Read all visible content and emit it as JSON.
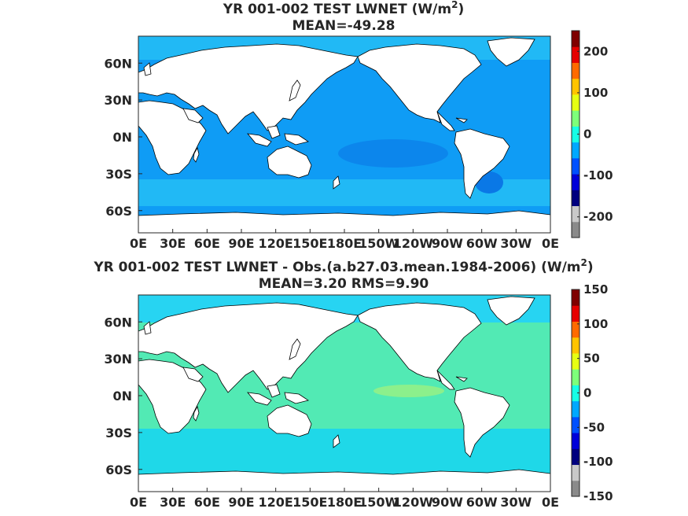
{
  "colors": {
    "ocean_top_base": "#0f9cf5",
    "ocean_top_highlat": "#21b9f5",
    "ocean_top_deep": "#0a78e6",
    "ocean_bottom_base": "#52eab4",
    "ocean_bottom_south": "#1fd8e8",
    "ocean_bottom_north": "#27d4f2",
    "ocean_bottom_warm": "#8cf08c",
    "land": "#ffffff",
    "coast": "#000000",
    "colorbar": [
      "#8a8a8a",
      "#c9c9c9",
      "#00007f",
      "#0000d9",
      "#0050ff",
      "#00a8ff",
      "#16ffe6",
      "#7dff7a",
      "#e6ff12",
      "#ffc400",
      "#ff6a00",
      "#e60000",
      "#7f0000"
    ]
  },
  "panels": [
    {
      "title_line1": "YR 001-002 TEST  LWNET (W/m",
      "title_sup": "2",
      "title_line1_end": ")",
      "title_line2": "MEAN=-49.28",
      "xticks": [
        "0E",
        "30E",
        "60E",
        "90E",
        "120E",
        "150E",
        "180E",
        "150W",
        "120W",
        "90W",
        "60W",
        "30W",
        "0E"
      ],
      "yticks": [
        "60N",
        "30N",
        "0N",
        "30S",
        "60S"
      ],
      "colorbar_ticks": [
        "200",
        "100",
        "0",
        "-100",
        "-200"
      ],
      "colorbar_values": [
        200,
        100,
        0,
        -100,
        -200
      ],
      "colorbar_range": [
        -250,
        250
      ]
    },
    {
      "title_line1": "YR 001-002 TEST LWNET - Obs.(a.b27.03.mean.1984-2006) (W/m",
      "title_sup": "2",
      "title_line1_end": ")",
      "title_line2": "MEAN=3.20 RMS=9.90",
      "xticks": [
        "0E",
        "30E",
        "60E",
        "90E",
        "120E",
        "150E",
        "180E",
        "150W",
        "120W",
        "90W",
        "60W",
        "30W",
        "0E"
      ],
      "yticks": [
        "60N",
        "30N",
        "0N",
        "30S",
        "60S"
      ],
      "colorbar_ticks": [
        "150",
        "100",
        "50",
        "0",
        "-50",
        "-100",
        "-150"
      ],
      "colorbar_values": [
        150,
        100,
        50,
        0,
        -50,
        -100,
        -150
      ],
      "colorbar_range": [
        -150,
        150
      ]
    }
  ],
  "chart_data": [
    {
      "type": "heatmap",
      "title": "YR 001-002 TEST  LWNET (W/m2)",
      "subtitle": "MEAN=-49.28",
      "x_ticks": [
        "0E",
        "30E",
        "60E",
        "90E",
        "120E",
        "150E",
        "180E",
        "150W",
        "120W",
        "90W",
        "60W",
        "30W",
        "0E"
      ],
      "y_ticks": [
        "60N",
        "30N",
        "0N",
        "30S",
        "60S"
      ],
      "colorbar_ticks": [
        200,
        100,
        0,
        -100,
        -200
      ],
      "colorbar_range": [
        -250,
        250
      ]
    },
    {
      "type": "heatmap",
      "title": "YR 001-002 TEST LWNET - Obs.(a.b27.03.mean.1984-2006) (W/m2)",
      "subtitle": "MEAN=3.20 RMS=9.90",
      "x_ticks": [
        "0E",
        "30E",
        "60E",
        "90E",
        "120E",
        "150E",
        "180E",
        "150W",
        "120W",
        "90W",
        "60W",
        "30W",
        "0E"
      ],
      "y_ticks": [
        "60N",
        "30N",
        "0N",
        "30S",
        "60S"
      ],
      "colorbar_ticks": [
        150,
        100,
        50,
        0,
        -50,
        -100,
        -150
      ],
      "colorbar_range": [
        -150,
        150
      ]
    }
  ]
}
